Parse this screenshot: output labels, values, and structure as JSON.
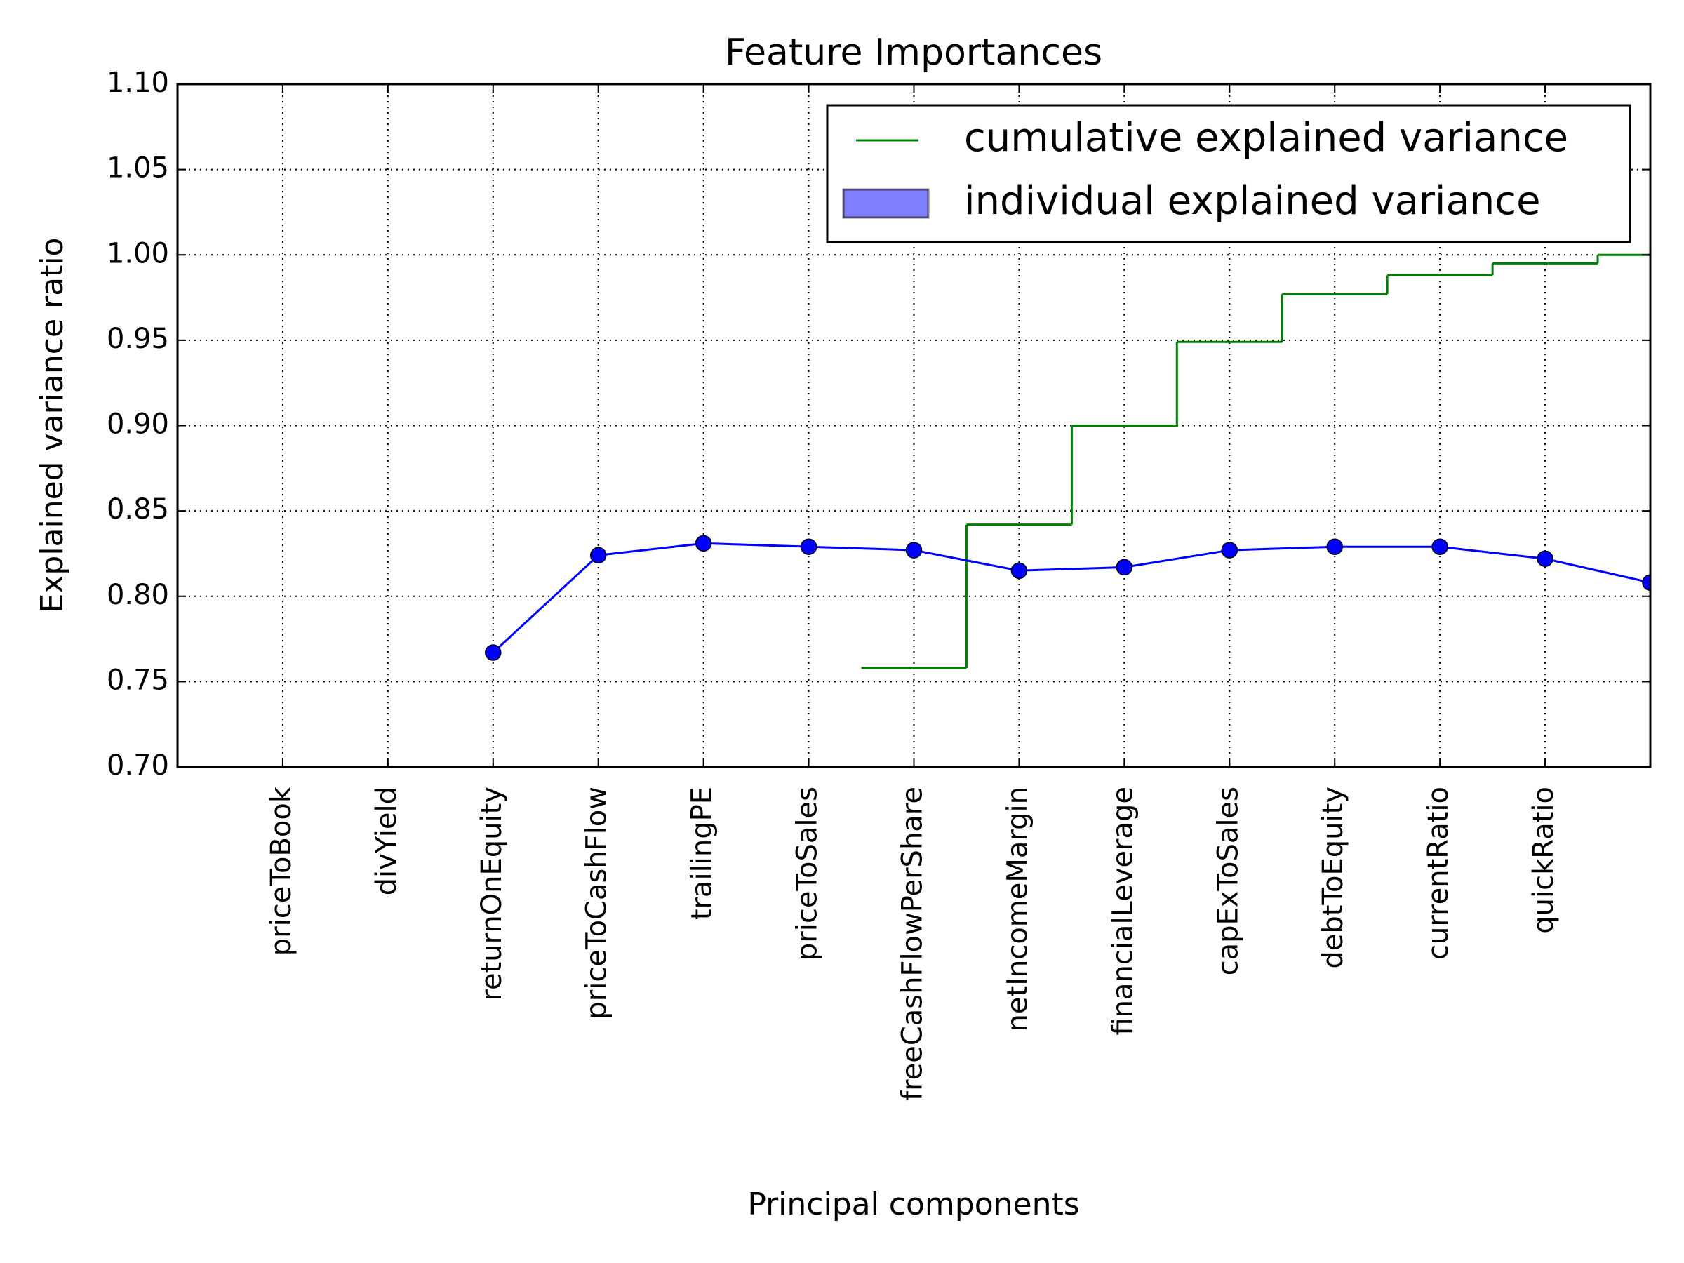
{
  "chart_data": {
    "type": "line",
    "title": "Feature Importances",
    "xlabel": "Principal components",
    "ylabel": "Explained variance ratio",
    "x": [
      1,
      2,
      3,
      4,
      5,
      6,
      7,
      8,
      9,
      10,
      11,
      12,
      13,
      14
    ],
    "xlim": [
      0,
      14
    ],
    "xticks": [
      {
        "value": 1,
        "label": "priceToBook"
      },
      {
        "value": 2,
        "label": "divYield"
      },
      {
        "value": 3,
        "label": "returnOnEquity"
      },
      {
        "value": 4,
        "label": "priceToCashFlow"
      },
      {
        "value": 5,
        "label": "trailingPE"
      },
      {
        "value": 6,
        "label": "priceToSales"
      },
      {
        "value": 7,
        "label": "freeCashFlowPerShare"
      },
      {
        "value": 8,
        "label": "netIncomeMargin"
      },
      {
        "value": 9,
        "label": "financialLeverage"
      },
      {
        "value": 10,
        "label": "capExToSales"
      },
      {
        "value": 11,
        "label": "debtToEquity"
      },
      {
        "value": 12,
        "label": "currentRatio"
      },
      {
        "value": 13,
        "label": "quickRatio"
      }
    ],
    "ylim": [
      0.7,
      1.1
    ],
    "yticks": [
      {
        "value": 0.7,
        "label": "0.70"
      },
      {
        "value": 0.75,
        "label": "0.75"
      },
      {
        "value": 0.8,
        "label": "0.80"
      },
      {
        "value": 0.85,
        "label": "0.85"
      },
      {
        "value": 0.9,
        "label": "0.90"
      },
      {
        "value": 0.95,
        "label": "0.95"
      },
      {
        "value": 1.0,
        "label": "1.00"
      },
      {
        "value": 1.05,
        "label": "1.05"
      },
      {
        "value": 1.1,
        "label": "1.10"
      }
    ],
    "grid": true,
    "legend": "upper right",
    "series": [
      {
        "name": "cumulative explained variance",
        "type": "step",
        "color": "#008000",
        "values": [
          null,
          null,
          null,
          null,
          null,
          null,
          0.758,
          0.842,
          0.9,
          0.949,
          0.977,
          0.988,
          0.995,
          1.0
        ]
      },
      {
        "name": "individual explained variance",
        "type": "bar",
        "color": "#8080ff",
        "values": [
          null,
          null,
          null,
          null,
          null,
          null,
          null,
          null,
          null,
          null,
          null,
          null,
          null,
          null
        ]
      },
      {
        "type": "line",
        "color": "#0000ff",
        "values": [
          null,
          null,
          0.767,
          0.824,
          0.831,
          0.829,
          0.827,
          0.815,
          0.817,
          0.827,
          0.829,
          0.829,
          0.822,
          0.808
        ]
      }
    ]
  }
}
